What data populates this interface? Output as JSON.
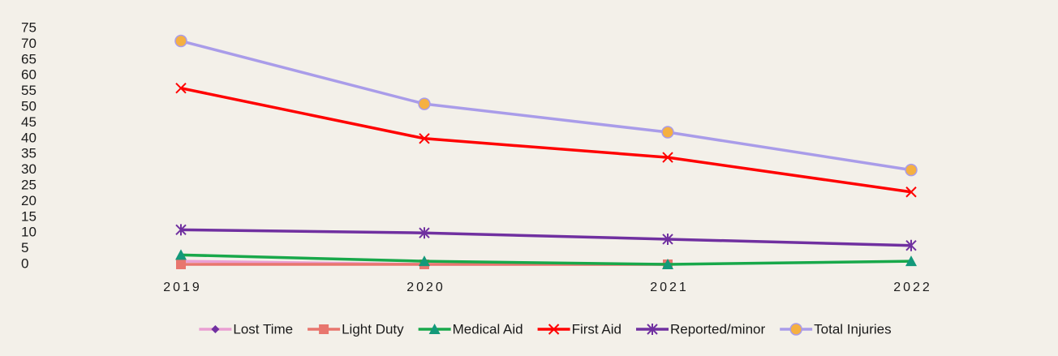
{
  "chart_data": {
    "type": "line",
    "categories": [
      "2019",
      "2020",
      "2021",
      "2022"
    ],
    "series": [
      {
        "name": "Lost Time",
        "color": "#ea9fd3",
        "marker": "diamond",
        "marker_color": "#7030a0",
        "values": [
          1,
          0,
          0,
          null
        ]
      },
      {
        "name": "Light Duty",
        "color": "#e8766e",
        "marker": "square",
        "marker_color": "#e8766e",
        "values": [
          0,
          0,
          0,
          null
        ]
      },
      {
        "name": "Medical Aid",
        "color": "#18a84a",
        "marker": "triangle",
        "marker_color": "#13997a",
        "values": [
          3,
          1,
          0,
          1
        ]
      },
      {
        "name": "First Aid",
        "color": "#ff0000",
        "marker": "x",
        "marker_color": "#ff0000",
        "values": [
          56,
          40,
          34,
          23
        ]
      },
      {
        "name": "Reported/minor",
        "color": "#7030a0",
        "marker": "star",
        "marker_color": "#7030a0",
        "values": [
          11,
          10,
          8,
          6
        ]
      },
      {
        "name": "Total Injuries",
        "color": "#a99ce9",
        "marker": "circle",
        "marker_color": "#f5b041",
        "values": [
          71,
          51,
          42,
          30
        ]
      }
    ],
    "ylim": [
      0,
      75
    ],
    "yticks": [
      0,
      5,
      10,
      15,
      20,
      25,
      30,
      35,
      40,
      45,
      50,
      55,
      60,
      65,
      70,
      75
    ],
    "grid": false,
    "legend": "bottom"
  }
}
